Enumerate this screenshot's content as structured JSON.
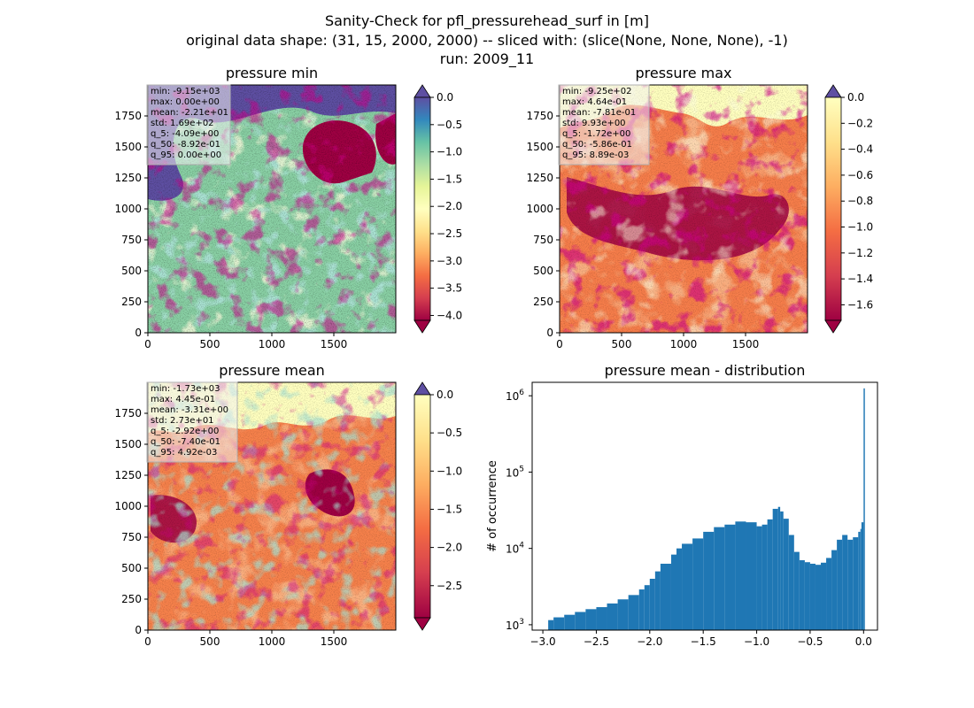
{
  "suptitle": [
    "Sanity-Check for pfl_pressurehead_surf in [m]",
    "original data shape: (31, 15, 2000, 2000) -- sliced with: (slice(None, None, None), -1)",
    "run: 2009_11"
  ],
  "chart_data": [
    {
      "type": "heatmap",
      "title": "pressure min",
      "cmap": "Spectral",
      "xlim": [
        0,
        2000
      ],
      "ylim": [
        0,
        2000
      ],
      "xticks": [
        "0",
        "500",
        "1000",
        "1500"
      ],
      "yticks": [
        "0",
        "250",
        "500",
        "750",
        "1000",
        "1250",
        "1500",
        "1750"
      ],
      "colorbar": {
        "range": [
          -4.09,
          0.0
        ],
        "ticks": [
          "0.0",
          "−0.5",
          "−1.0",
          "−1.5",
          "−2.0",
          "−2.5",
          "−3.0",
          "−3.5",
          "−4.0"
        ],
        "extend": "both"
      },
      "stats": [
        "min: -9.15e+03",
        "max: 0.00e+00",
        "mean: -2.21e+01",
        "std: 1.69e+02",
        "q_5: -4.09e+00",
        "q_50: -8.92e-01",
        "q_95: 0.00e+00"
      ]
    },
    {
      "type": "heatmap",
      "title": "pressure max",
      "cmap": "Spectral",
      "xlim": [
        0,
        2000
      ],
      "ylim": [
        0,
        2000
      ],
      "xticks": [
        "0",
        "500",
        "1000",
        "1500"
      ],
      "yticks": [
        "0",
        "250",
        "500",
        "750",
        "1000",
        "1250",
        "1500",
        "1750"
      ],
      "colorbar": {
        "range": [
          -1.72,
          0.0
        ],
        "ticks": [
          "0.0",
          "−0.2",
          "−0.4",
          "−0.6",
          "−0.8",
          "−1.0",
          "−1.2",
          "−1.4",
          "−1.6"
        ],
        "extend": "both"
      },
      "stats": [
        "min: -9.25e+02",
        "max: 4.64e-01",
        "mean: -7.81e-01",
        "std: 9.93e+00",
        "q_5: -1.72e+00",
        "q_50: -5.86e-01",
        "q_95: 8.89e-03"
      ]
    },
    {
      "type": "heatmap",
      "title": "pressure mean",
      "cmap": "Spectral",
      "xlim": [
        0,
        2000
      ],
      "ylim": [
        0,
        2000
      ],
      "xticks": [
        "0",
        "500",
        "1000",
        "1500"
      ],
      "yticks": [
        "0",
        "250",
        "500",
        "750",
        "1000",
        "1250",
        "1500",
        "1750"
      ],
      "colorbar": {
        "range": [
          -2.92,
          0.0
        ],
        "ticks": [
          "0.0",
          "−0.5",
          "−1.0",
          "−1.5",
          "−2.0",
          "−2.5"
        ],
        "extend": "both"
      },
      "stats": [
        "min: -1.73e+03",
        "max: 4.45e-01",
        "mean: -3.31e+00",
        "std: 2.73e+01",
        "q_5: -2.92e+00",
        "q_50: -7.40e-01",
        "q_95: 4.92e-03"
      ]
    },
    {
      "type": "bar",
      "title": "pressure mean - distribution",
      "ylabel": "# of occurrence",
      "xlabel": "",
      "yscale": "log",
      "xlim": [
        -3.1,
        0.13
      ],
      "ylim": [
        850,
        1500000
      ],
      "xticks": [
        "−3.0",
        "−2.5",
        "−2.0",
        "−1.5",
        "−1.0",
        "−0.5",
        "0.0"
      ],
      "color": "#1f77b4",
      "bins": [
        -2.95,
        -2.9,
        -2.8,
        -2.7,
        -2.6,
        -2.5,
        -2.4,
        -2.3,
        -2.2,
        -2.1,
        -2.05,
        -2.0,
        -1.95,
        -1.9,
        -1.8,
        -1.75,
        -1.7,
        -1.6,
        -1.5,
        -1.4,
        -1.3,
        -1.2,
        -1.1,
        -1.0,
        -0.95,
        -0.9,
        -0.85,
        -0.8,
        -0.78,
        -0.75,
        -0.7,
        -0.65,
        -0.6,
        -0.55,
        -0.5,
        -0.45,
        -0.4,
        -0.35,
        -0.3,
        -0.25,
        -0.2,
        -0.15,
        -0.1,
        -0.05,
        -0.03,
        -0.02,
        0.0
      ],
      "counts": [
        1150,
        1250,
        1350,
        1470,
        1600,
        1700,
        1900,
        2150,
        2450,
        2900,
        3300,
        4000,
        5000,
        6300,
        8300,
        10000,
        11500,
        13500,
        16500,
        19000,
        20500,
        22500,
        22000,
        19500,
        20500,
        24000,
        33000,
        35000,
        30500,
        24500,
        15000,
        9000,
        7000,
        6600,
        6300,
        6100,
        6500,
        7500,
        9500,
        13000,
        15000,
        13000,
        14000,
        16500,
        18000,
        22000,
        1250000
      ]
    }
  ]
}
